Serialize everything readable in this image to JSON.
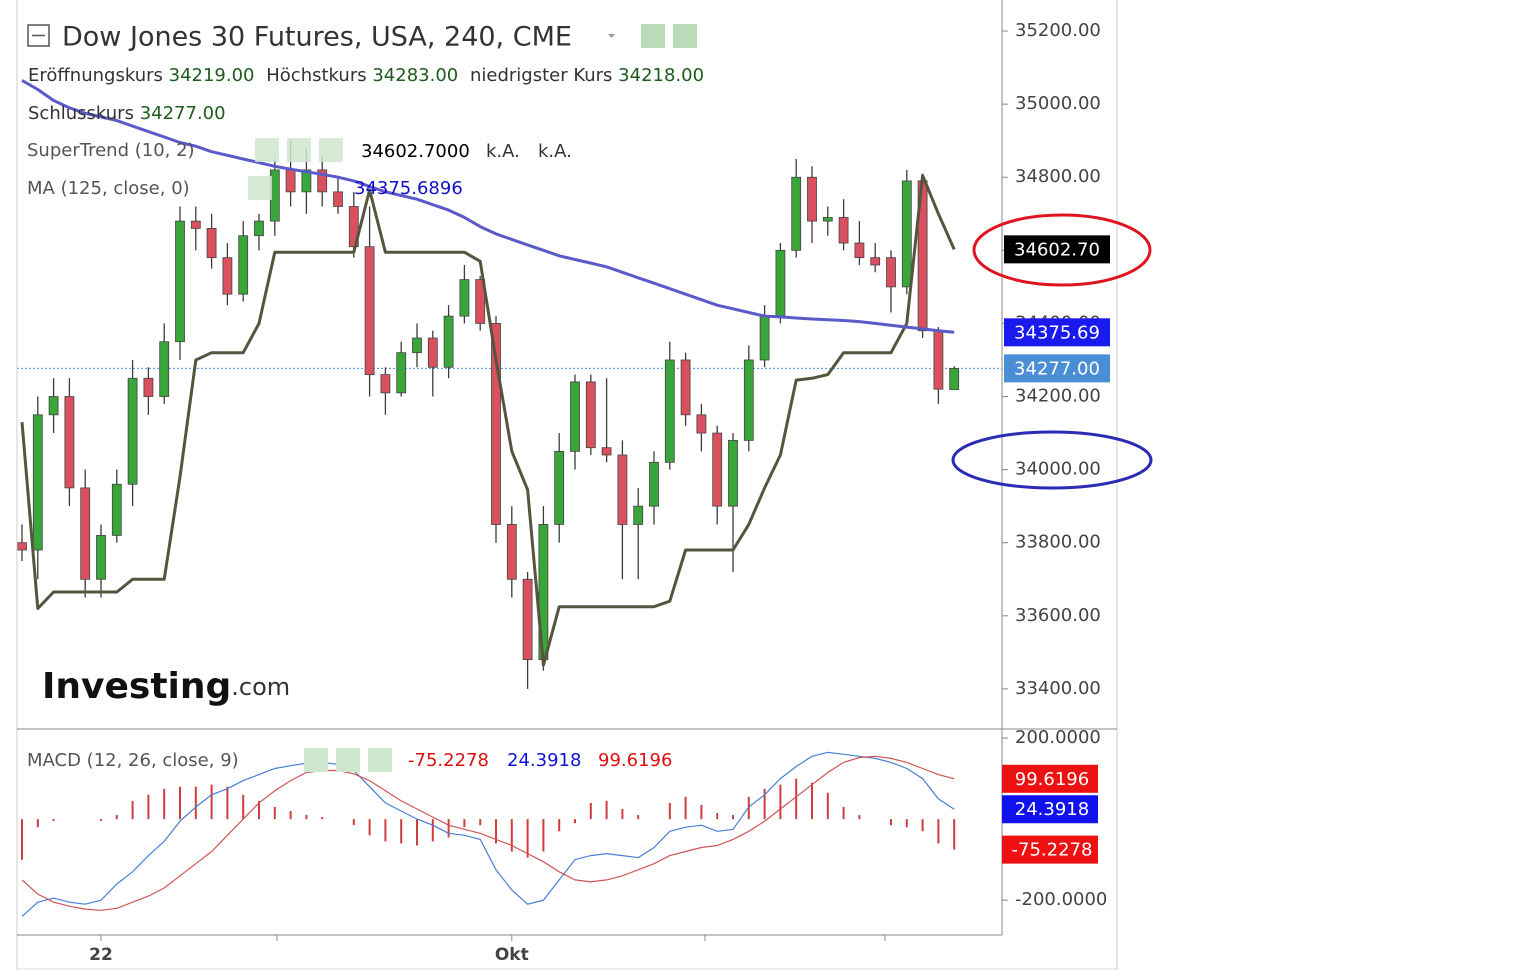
{
  "chart_data": [
    {
      "type": "candlestick",
      "title": "Dow Jones 30 Futures, USA, 240, CME",
      "ohlc_legend": [
        {
          "label": "Eröffnungskurs",
          "value": "34219.00"
        },
        {
          "label": "Höchstkurs",
          "value": "34283.00"
        },
        {
          "label": "niedrigster Kurs",
          "value": "34218.00"
        },
        {
          "label": "Schlusskurs",
          "value": "34277.00"
        }
      ],
      "categories": [
        null,
        null,
        null,
        null,
        null,
        "22",
        null,
        null,
        null,
        null,
        null,
        null,
        null,
        null,
        null,
        null,
        null,
        null,
        null,
        null,
        null,
        null,
        null,
        null,
        null,
        null,
        null,
        null,
        null,
        null,
        null,
        "Okt",
        null,
        null,
        null,
        null,
        null,
        null,
        null,
        null,
        null,
        null,
        null,
        null,
        null,
        null,
        null,
        null,
        null,
        null,
        null,
        null,
        null,
        null,
        null,
        null,
        null,
        null,
        null,
        null
      ],
      "open": [
        33800,
        33780,
        34150,
        34200,
        33950,
        33700,
        33820,
        33960,
        34250,
        34200,
        34350,
        34680,
        34660,
        34580,
        34480,
        34640,
        34680,
        34820,
        34760,
        34820,
        34760,
        34720,
        34610,
        34260,
        34210,
        34320,
        34360,
        34280,
        34420,
        34520,
        34400,
        33850,
        33700,
        33480,
        33850,
        34050,
        34240,
        34060,
        34040,
        33850,
        33900,
        34020,
        34300,
        34150,
        34100,
        33900,
        34080,
        34300,
        34420,
        34600,
        34800,
        34680,
        34690,
        34620,
        34580,
        34580,
        34500,
        34790,
        34380,
        34219
      ],
      "high": [
        33850,
        34200,
        34250,
        34250,
        34000,
        33850,
        34000,
        34300,
        34280,
        34400,
        34720,
        34720,
        34700,
        34620,
        34680,
        34700,
        34850,
        34900,
        34880,
        34860,
        34800,
        34760,
        34720,
        34280,
        34350,
        34400,
        34380,
        34450,
        34560,
        34530,
        34420,
        33900,
        33720,
        33900,
        34100,
        34260,
        34260,
        34250,
        34080,
        33950,
        34050,
        34350,
        34320,
        34180,
        34120,
        34100,
        34340,
        34450,
        34620,
        34850,
        34830,
        34720,
        34740,
        34680,
        34620,
        34600,
        34820,
        34810,
        34390,
        34283
      ],
      "low": [
        33750,
        33700,
        34100,
        33900,
        33650,
        33650,
        33800,
        33900,
        34150,
        34180,
        34300,
        34600,
        34550,
        34450,
        34460,
        34600,
        34640,
        34720,
        34700,
        34720,
        34700,
        34580,
        34200,
        34150,
        34200,
        34280,
        34200,
        34250,
        34400,
        34380,
        33800,
        33650,
        33400,
        33450,
        33800,
        34000,
        34040,
        34020,
        33700,
        33700,
        33850,
        34000,
        34120,
        34050,
        33850,
        33720,
        34050,
        34280,
        34400,
        34580,
        34620,
        34640,
        34600,
        34560,
        34540,
        34430,
        34480,
        34360,
        34180,
        34218
      ],
      "close": [
        33780,
        34150,
        34200,
        33950,
        33700,
        33820,
        33960,
        34250,
        34200,
        34350,
        34680,
        34660,
        34580,
        34480,
        34640,
        34680,
        34820,
        34760,
        34820,
        34760,
        34720,
        34610,
        34260,
        34210,
        34320,
        34360,
        34280,
        34420,
        34520,
        34400,
        33850,
        33700,
        33480,
        33850,
        34050,
        34240,
        34060,
        34040,
        33850,
        33900,
        34020,
        34300,
        34150,
        34100,
        33900,
        34080,
        34300,
        34420,
        34600,
        34800,
        34680,
        34690,
        34620,
        34580,
        34560,
        34500,
        34790,
        34380,
        34220,
        34277
      ],
      "up_color": "#3aa53a",
      "down_color": "#d9505f",
      "ylim": [
        33293,
        35285
      ],
      "yticks": [
        {
          "value": 35200,
          "label": "35200.00"
        },
        {
          "value": 35000,
          "label": "35000.00"
        },
        {
          "value": 34800,
          "label": "34800.00"
        },
        {
          "value": 34600,
          "label": "34600.00"
        },
        {
          "value": 34400,
          "label": "34400.00"
        },
        {
          "value": 34200,
          "label": "34200.00"
        },
        {
          "value": 34000,
          "label": "34000.00"
        },
        {
          "value": 33800,
          "label": "33800.00"
        },
        {
          "value": 33600,
          "label": "33600.00"
        },
        {
          "value": 33400,
          "label": "33400.00"
        }
      ],
      "lines": [
        {
          "name": "SuperTrend (10, 2)",
          "legend_values": [
            "34602.7000",
            "k.A.",
            "k.A."
          ],
          "color": "#55553f",
          "values": [
            34130,
            33620,
            33665,
            33665,
            33665,
            33665,
            33665,
            33700,
            33700,
            33700,
            33980,
            34300,
            34320,
            34320,
            34320,
            34400,
            34595,
            34595,
            34595,
            34595,
            34595,
            34595,
            34765,
            34595,
            34595,
            34595,
            34595,
            34595,
            34595,
            34570,
            34300,
            34050,
            33945,
            33465,
            33625,
            33625,
            33625,
            33625,
            33625,
            33625,
            33625,
            33640,
            33780,
            33780,
            33780,
            33780,
            33850,
            33950,
            34040,
            34245,
            34250,
            34260,
            34320,
            34320,
            34320,
            34320,
            34400,
            34805,
            34700,
            34602.7
          ]
        },
        {
          "name": "MA (125, close, 0)",
          "legend_values": [
            "34375.6896"
          ],
          "color": "#5a5ac8",
          "values": [
            35065,
            35040,
            35010,
            34990,
            34975,
            34965,
            34955,
            34940,
            34925,
            34910,
            34895,
            34885,
            34870,
            34860,
            34850,
            34840,
            34830,
            34822,
            34815,
            34808,
            34800,
            34790,
            34775,
            34760,
            34750,
            34740,
            34725,
            34710,
            34690,
            34665,
            34645,
            34630,
            34615,
            34600,
            34585,
            34575,
            34565,
            34555,
            34540,
            34525,
            34510,
            34495,
            34480,
            34465,
            34450,
            34440,
            34430,
            34420,
            34418,
            34415,
            34412,
            34410,
            34408,
            34405,
            34400,
            34395,
            34390,
            34385,
            34380,
            34375.69
          ]
        }
      ],
      "price_labels": [
        {
          "value": 34602.7,
          "label": "34602.70",
          "color": "#000000"
        },
        {
          "value": 34375.69,
          "label": "34375.69",
          "color": "#1a1aee"
        },
        {
          "value": 34277,
          "label": "34277.00",
          "color": "#4a8fd6"
        }
      ],
      "watermark": [
        "Investing",
        ".com"
      ]
    },
    {
      "type": "macd",
      "title": "MACD (12, 26, close, 9)",
      "ylim": [
        -286,
        220
      ],
      "yticks": [
        {
          "value": 200,
          "label": "200.0000"
        },
        {
          "value": -200,
          "label": "-200.0000"
        }
      ],
      "series": [
        {
          "type": "bar",
          "color": "#d23c3c",
          "label_color": "#ee1111",
          "values": [
            -100,
            -20,
            -5,
            0,
            0,
            -5,
            10,
            45,
            60,
            75,
            80,
            80,
            85,
            80,
            60,
            45,
            30,
            20,
            10,
            5,
            0,
            -15,
            -40,
            -55,
            -60,
            -65,
            -55,
            -45,
            -20,
            -15,
            -60,
            -80,
            -95,
            -80,
            -30,
            -10,
            40,
            45,
            25,
            10,
            0,
            40,
            55,
            35,
            15,
            10,
            55,
            75,
            85,
            100,
            90,
            65,
            30,
            10,
            0,
            -15,
            -20,
            -30,
            -60,
            -75.2278
          ]
        },
        {
          "type": "line",
          "color": "#4a7fd4",
          "label_color": "#1111ee",
          "values": [
            -240,
            -205,
            -195,
            -205,
            -210,
            -200,
            -160,
            -130,
            -90,
            -55,
            -5,
            30,
            60,
            75,
            95,
            110,
            125,
            132,
            138,
            140,
            135,
            120,
            80,
            40,
            20,
            0,
            -15,
            -35,
            -40,
            -50,
            -125,
            -175,
            -210,
            -200,
            -150,
            -100,
            -90,
            -85,
            -90,
            -95,
            -70,
            -30,
            -20,
            -15,
            -30,
            -25,
            30,
            60,
            100,
            130,
            155,
            165,
            160,
            155,
            150,
            140,
            125,
            100,
            50,
            24.3918
          ]
        },
        {
          "type": "line",
          "color": "#d05555",
          "label_color": "#ee1111",
          "values": [
            -150,
            -185,
            -205,
            -215,
            -222,
            -225,
            -220,
            -205,
            -190,
            -170,
            -140,
            -110,
            -80,
            -40,
            0,
            40,
            70,
            95,
            115,
            120,
            120,
            112,
            95,
            70,
            45,
            25,
            5,
            -15,
            -25,
            -35,
            -50,
            -65,
            -85,
            -105,
            -130,
            -150,
            -155,
            -150,
            -140,
            -125,
            -110,
            -90,
            -80,
            -70,
            -65,
            -50,
            -30,
            -5,
            25,
            55,
            85,
            115,
            140,
            152,
            155,
            150,
            140,
            125,
            110,
            99.6196
          ]
        }
      ]
    }
  ]
}
